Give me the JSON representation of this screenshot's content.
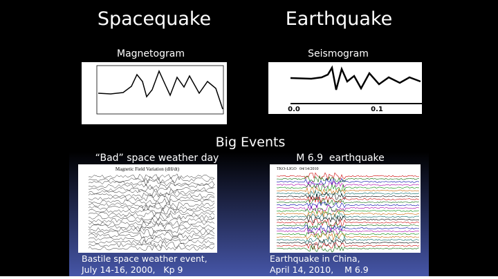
{
  "header": {
    "left_title": "Spacequake",
    "right_title": "Earthquake"
  },
  "panels": [
    {
      "label": "Magnetogram"
    },
    {
      "label": "Seismogram",
      "ticks": [
        "0.0",
        "0.1"
      ]
    }
  ],
  "section_title": "Big Events",
  "events": [
    {
      "label": "“Bad” space weather day",
      "chart_title": "Magnetic Field Variation (dH/dt)",
      "caption": [
        "Bastile space weather event,",
        "July 14-16, 2000,   Kp 9"
      ]
    },
    {
      "label": "M 6.9  earthquake",
      "chart_title": "TKO-LIGO   04/14/2010",
      "caption": [
        "Earthquake in China,",
        "April 14, 2010,    M 6.9"
      ]
    }
  ]
}
